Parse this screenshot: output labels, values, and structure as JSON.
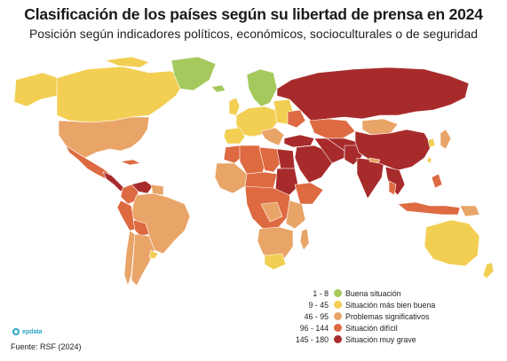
{
  "title": "Clasificación de los países según su libertad de prensa en 2024",
  "subtitle": "Posición según indicadores políticos, económicos, socioculturales o de seguridad",
  "legend": [
    {
      "range": "1 - 8",
      "label": "Buena situación",
      "color": "#a6c95e"
    },
    {
      "range": "9 - 45",
      "label": "Situación más bien buena",
      "color": "#f2cf52"
    },
    {
      "range": "46 - 95",
      "label": "Problemas significativos",
      "color": "#e9a468"
    },
    {
      "range": "96 - 144",
      "label": "Situación difícil",
      "color": "#de6a41"
    },
    {
      "range": "145 - 180",
      "label": "Situación muy grave",
      "color": "#a82b2b"
    }
  ],
  "brand": "epdata",
  "source": "Fuente: RSF (2024)"
}
